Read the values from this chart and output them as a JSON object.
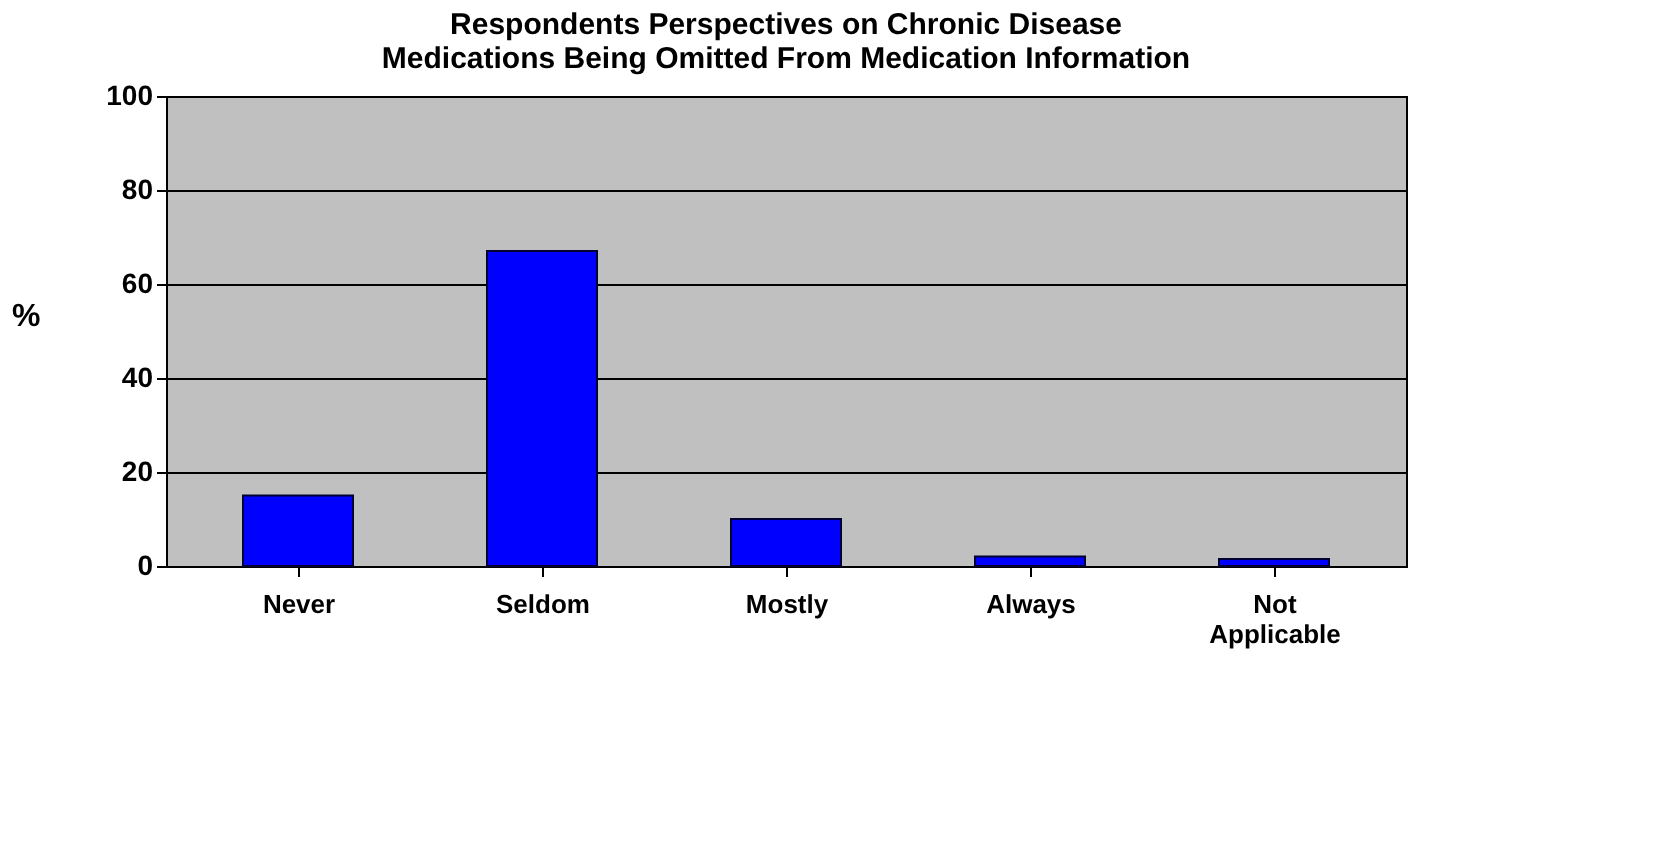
{
  "chart_data": {
    "type": "bar",
    "title": "Respondents Perspectives on Chronic Disease Medications Being Omitted From Medication Information",
    "ylabel": "%",
    "categories": [
      "Never",
      "Seldom",
      "Mostly",
      "Always",
      "Not Applicable"
    ],
    "values": [
      15,
      67,
      10,
      2,
      1.5
    ],
    "color": "#0000ff",
    "ylim": [
      0,
      100
    ],
    "yticks": [
      0,
      20,
      40,
      60,
      80,
      100
    ],
    "grid": "y"
  }
}
